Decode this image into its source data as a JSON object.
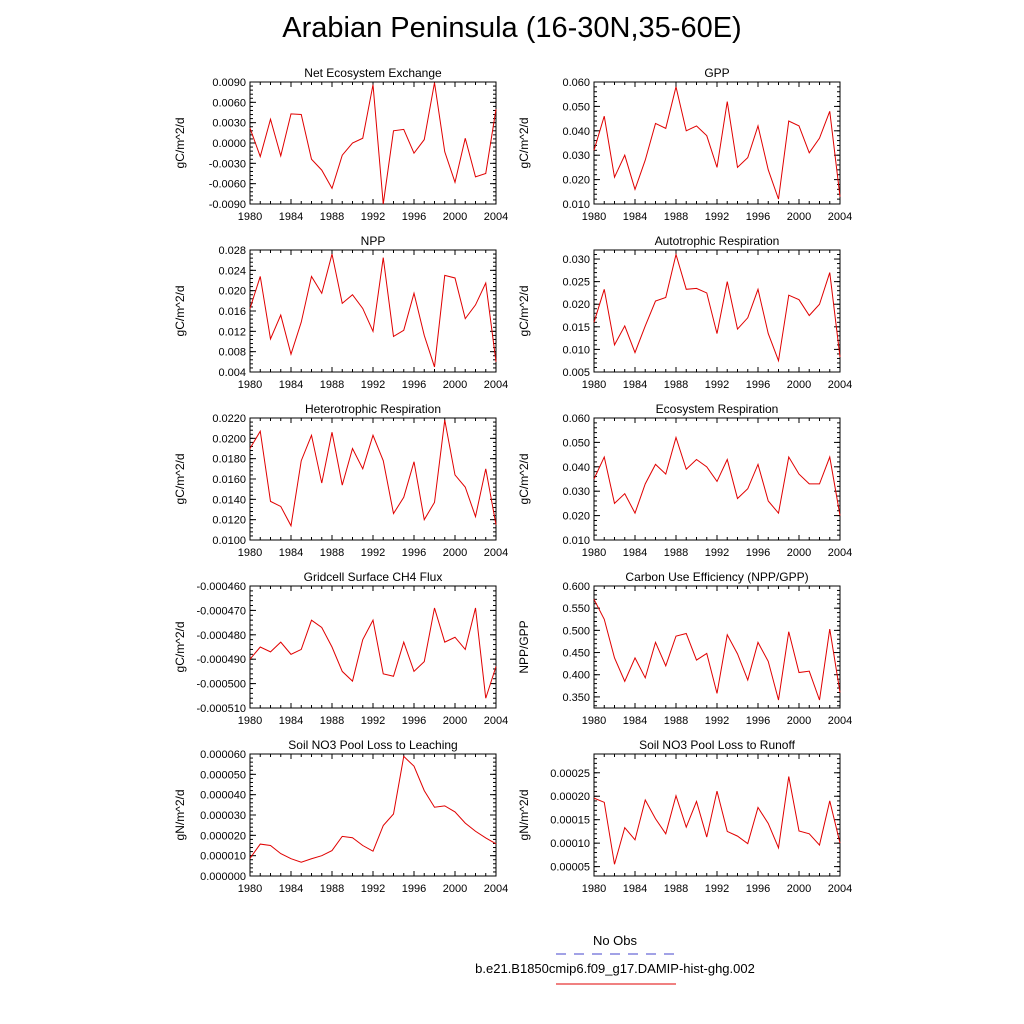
{
  "title": "Arabian Peninsula (16-30N,35-60E)",
  "legend": {
    "obs_label": "No Obs",
    "obs_color": "#4444cc",
    "model_label": "b.e21.B1850cmip6.f09_g17.DAMIP-hist-ghg.002",
    "model_color": "#e00000"
  },
  "chart_data": [
    {
      "type": "line",
      "title": "Net Ecosystem Exchange",
      "ylabel": "gC/m^2/d",
      "xlim": [
        1980,
        2004
      ],
      "ylim": [
        -0.009,
        0.009
      ],
      "xticks": [
        "1980",
        "1984",
        "1988",
        "1992",
        "1996",
        "2000",
        "2004"
      ],
      "yticks": [
        "-0.0090",
        "-0.0060",
        "-0.0030",
        "0.0000",
        "0.0030",
        "0.0060",
        "0.0090"
      ],
      "x": [
        1980,
        1981,
        1982,
        1983,
        1984,
        1985,
        1986,
        1987,
        1988,
        1989,
        1990,
        1991,
        1992,
        1993,
        1994,
        1995,
        1996,
        1997,
        1998,
        1999,
        2000,
        2001,
        2002,
        2003,
        2004
      ],
      "series": [
        {
          "values": [
            0.0022,
            -0.002,
            0.0035,
            -0.0019,
            0.0043,
            0.0042,
            -0.0024,
            -0.004,
            -0.0067,
            -0.0018,
            0.0,
            0.0007,
            0.0086,
            -0.009,
            0.0018,
            0.002,
            -0.0015,
            0.0005,
            0.0089,
            -0.0013,
            -0.0058,
            0.0007,
            -0.005,
            -0.0045,
            0.005
          ]
        }
      ]
    },
    {
      "type": "line",
      "title": "GPP",
      "ylabel": "gC/m^2/d",
      "xlim": [
        1980,
        2004
      ],
      "ylim": [
        0.01,
        0.06
      ],
      "xticks": [
        "1980",
        "1984",
        "1988",
        "1992",
        "1996",
        "2000",
        "2004"
      ],
      "yticks": [
        "0.010",
        "0.020",
        "0.030",
        "0.040",
        "0.050",
        "0.060"
      ],
      "x": [
        1980,
        1981,
        1982,
        1983,
        1984,
        1985,
        1986,
        1987,
        1988,
        1989,
        1990,
        1991,
        1992,
        1993,
        1994,
        1995,
        1996,
        1997,
        1998,
        1999,
        2000,
        2001,
        2002,
        2003,
        2004
      ],
      "series": [
        {
          "values": [
            0.032,
            0.046,
            0.021,
            0.03,
            0.016,
            0.028,
            0.043,
            0.041,
            0.058,
            0.04,
            0.042,
            0.038,
            0.025,
            0.052,
            0.025,
            0.029,
            0.042,
            0.024,
            0.012,
            0.044,
            0.042,
            0.031,
            0.037,
            0.048,
            0.013
          ]
        }
      ]
    },
    {
      "type": "line",
      "title": "NPP",
      "ylabel": "gC/m^2/d",
      "xlim": [
        1980,
        2004
      ],
      "ylim": [
        0.004,
        0.028
      ],
      "xticks": [
        "1980",
        "1984",
        "1988",
        "1992",
        "1996",
        "2000",
        "2004"
      ],
      "yticks": [
        "0.004",
        "0.008",
        "0.012",
        "0.016",
        "0.020",
        "0.024",
        "0.028"
      ],
      "x": [
        1980,
        1981,
        1982,
        1983,
        1984,
        1985,
        1986,
        1987,
        1988,
        1989,
        1990,
        1991,
        1992,
        1993,
        1994,
        1995,
        1996,
        1997,
        1998,
        1999,
        2000,
        2001,
        2002,
        2003,
        2004
      ],
      "series": [
        {
          "values": [
            0.0165,
            0.0228,
            0.0105,
            0.0152,
            0.0075,
            0.0138,
            0.0228,
            0.0195,
            0.0272,
            0.0175,
            0.0192,
            0.0165,
            0.012,
            0.0265,
            0.011,
            0.0122,
            0.0195,
            0.0112,
            0.005,
            0.023,
            0.0225,
            0.0145,
            0.0172,
            0.0215,
            0.006
          ]
        }
      ]
    },
    {
      "type": "line",
      "title": "Autotrophic Respiration",
      "ylabel": "gC/m^2/d",
      "xlim": [
        1980,
        2004
      ],
      "ylim": [
        0.005,
        0.032
      ],
      "xticks": [
        "1980",
        "1984",
        "1988",
        "1992",
        "1996",
        "2000",
        "2004"
      ],
      "yticks": [
        "0.005",
        "0.010",
        "0.015",
        "0.020",
        "0.025",
        "0.030"
      ],
      "x": [
        1980,
        1981,
        1982,
        1983,
        1984,
        1985,
        1986,
        1987,
        1988,
        1989,
        1990,
        1991,
        1992,
        1993,
        1994,
        1995,
        1996,
        1997,
        1998,
        1999,
        2000,
        2001,
        2002,
        2003,
        2004
      ],
      "series": [
        {
          "values": [
            0.016,
            0.0233,
            0.011,
            0.0152,
            0.0093,
            0.0152,
            0.0207,
            0.0215,
            0.031,
            0.0233,
            0.0235,
            0.0225,
            0.0135,
            0.025,
            0.0145,
            0.017,
            0.0233,
            0.0135,
            0.0075,
            0.022,
            0.021,
            0.0175,
            0.02,
            0.027,
            0.0083
          ]
        }
      ]
    },
    {
      "type": "line",
      "title": "Heterotrophic Respiration",
      "ylabel": "gC/m^2/d",
      "xlim": [
        1980,
        2004
      ],
      "ylim": [
        0.01,
        0.022
      ],
      "xticks": [
        "1980",
        "1984",
        "1988",
        "1992",
        "1996",
        "2000",
        "2004"
      ],
      "yticks": [
        "0.0100",
        "0.0120",
        "0.0140",
        "0.0160",
        "0.0180",
        "0.0200",
        "0.0220"
      ],
      "x": [
        1980,
        1981,
        1982,
        1983,
        1984,
        1985,
        1986,
        1987,
        1988,
        1989,
        1990,
        1991,
        1992,
        1993,
        1994,
        1995,
        1996,
        1997,
        1998,
        1999,
        2000,
        2001,
        2002,
        2003,
        2004
      ],
      "series": [
        {
          "values": [
            0.019,
            0.0207,
            0.0138,
            0.0133,
            0.0114,
            0.0178,
            0.0203,
            0.0156,
            0.0206,
            0.0154,
            0.019,
            0.017,
            0.0203,
            0.0178,
            0.0126,
            0.0142,
            0.0177,
            0.012,
            0.0137,
            0.0218,
            0.0164,
            0.0152,
            0.0123,
            0.017,
            0.0115
          ]
        }
      ]
    },
    {
      "type": "line",
      "title": "Ecosystem Respiration",
      "ylabel": "gC/m^2/d",
      "xlim": [
        1980,
        2004
      ],
      "ylim": [
        0.01,
        0.06
      ],
      "xticks": [
        "1980",
        "1984",
        "1988",
        "1992",
        "1996",
        "2000",
        "2004"
      ],
      "yticks": [
        "0.010",
        "0.020",
        "0.030",
        "0.040",
        "0.050",
        "0.060"
      ],
      "x": [
        1980,
        1981,
        1982,
        1983,
        1984,
        1985,
        1986,
        1987,
        1988,
        1989,
        1990,
        1991,
        1992,
        1993,
        1994,
        1995,
        1996,
        1997,
        1998,
        1999,
        2000,
        2001,
        2002,
        2003,
        2004
      ],
      "series": [
        {
          "values": [
            0.035,
            0.044,
            0.025,
            0.029,
            0.021,
            0.033,
            0.041,
            0.037,
            0.052,
            0.039,
            0.043,
            0.04,
            0.034,
            0.043,
            0.027,
            0.031,
            0.041,
            0.026,
            0.021,
            0.044,
            0.037,
            0.033,
            0.033,
            0.044,
            0.02
          ]
        }
      ]
    },
    {
      "type": "line",
      "title": "Gridcell Surface CH4 Flux",
      "ylabel": "gC/m^2/d",
      "xlim": [
        1980,
        2004
      ],
      "ylim": [
        -0.00051,
        -0.00046
      ],
      "xticks": [
        "1980",
        "1984",
        "1988",
        "1992",
        "1996",
        "2000",
        "2004"
      ],
      "yticks": [
        "-0.000510",
        "-0.000500",
        "-0.000490",
        "-0.000480",
        "-0.000470",
        "-0.000460"
      ],
      "x": [
        1980,
        1981,
        1982,
        1983,
        1984,
        1985,
        1986,
        1987,
        1988,
        1989,
        1990,
        1991,
        1992,
        1993,
        1994,
        1995,
        1996,
        1997,
        1998,
        1999,
        2000,
        2001,
        2002,
        2003,
        2004
      ],
      "series": [
        {
          "values": [
            -0.00049,
            -0.000485,
            -0.000487,
            -0.000483,
            -0.000488,
            -0.000486,
            -0.000474,
            -0.000477,
            -0.000485,
            -0.000495,
            -0.000499,
            -0.000482,
            -0.000474,
            -0.000496,
            -0.000497,
            -0.000483,
            -0.000495,
            -0.000491,
            -0.000469,
            -0.000483,
            -0.000481,
            -0.000486,
            -0.000469,
            -0.000506,
            -0.000493
          ]
        }
      ]
    },
    {
      "type": "line",
      "title": "Carbon Use Efficiency (NPP/GPP)",
      "ylabel": "NPP/GPP",
      "xlim": [
        1980,
        2004
      ],
      "ylim": [
        0.325,
        0.6
      ],
      "xticks": [
        "1980",
        "1984",
        "1988",
        "1992",
        "1996",
        "2000",
        "2004"
      ],
      "yticks": [
        "0.350",
        "0.400",
        "0.450",
        "0.500",
        "0.550",
        "0.600"
      ],
      "x": [
        1980,
        1981,
        1982,
        1983,
        1984,
        1985,
        1986,
        1987,
        1988,
        1989,
        1990,
        1991,
        1992,
        1993,
        1994,
        1995,
        1996,
        1997,
        1998,
        1999,
        2000,
        2001,
        2002,
        2003,
        2004
      ],
      "series": [
        {
          "values": [
            0.57,
            0.525,
            0.438,
            0.385,
            0.438,
            0.393,
            0.473,
            0.42,
            0.487,
            0.493,
            0.433,
            0.448,
            0.358,
            0.49,
            0.447,
            0.388,
            0.473,
            0.43,
            0.343,
            0.497,
            0.405,
            0.408,
            0.343,
            0.503,
            0.36
          ]
        }
      ]
    },
    {
      "type": "line",
      "title": "Soil NO3 Pool Loss to Leaching",
      "ylabel": "gN/m^2/d",
      "xlim": [
        1980,
        2004
      ],
      "ylim": [
        0.0,
        6e-05
      ],
      "xticks": [
        "1980",
        "1984",
        "1988",
        "1992",
        "1996",
        "2000",
        "2004"
      ],
      "yticks": [
        "0.000000",
        "0.000010",
        "0.000020",
        "0.000030",
        "0.000040",
        "0.000050",
        "0.000060"
      ],
      "x": [
        1980,
        1981,
        1982,
        1983,
        1984,
        1985,
        1986,
        1987,
        1988,
        1989,
        1990,
        1991,
        1992,
        1993,
        1994,
        1995,
        1996,
        1997,
        1998,
        1999,
        2000,
        2001,
        2002,
        2003,
        2004
      ],
      "series": [
        {
          "values": [
            8.7e-06,
            1.57e-05,
            1.5e-05,
            1.1e-05,
            8.5e-06,
            6.8e-06,
            8.5e-06,
            1e-05,
            1.25e-05,
            1.95e-05,
            1.88e-05,
            1.5e-05,
            1.22e-05,
            2.48e-05,
            3.05e-05,
            5.88e-05,
            5.4e-05,
            4.2e-05,
            3.38e-05,
            3.45e-05,
            3.15e-05,
            2.6e-05,
            2.2e-05,
            1.87e-05,
            1.58e-05
          ]
        }
      ]
    },
    {
      "type": "line",
      "title": "Soil NO3 Pool Loss to Runoff",
      "ylabel": "gN/m^2/d",
      "xlim": [
        1980,
        2004
      ],
      "ylim": [
        3e-05,
        0.00029
      ],
      "xticks": [
        "1980",
        "1984",
        "1988",
        "1992",
        "1996",
        "2000",
        "2004"
      ],
      "yticks": [
        "0.00005",
        "0.00010",
        "0.00015",
        "0.00020",
        "0.00025"
      ],
      "x": [
        1980,
        1981,
        1982,
        1983,
        1984,
        1985,
        1986,
        1987,
        1988,
        1989,
        1990,
        1991,
        1992,
        1993,
        1994,
        1995,
        1996,
        1997,
        1998,
        1999,
        2000,
        2001,
        2002,
        2003,
        2004
      ],
      "series": [
        {
          "values": [
            0.000196,
            0.000187,
            5.5e-05,
            0.000133,
            0.000107,
            0.000192,
            0.000152,
            0.00012,
            0.000201,
            0.000134,
            0.000189,
            0.000113,
            0.000211,
            0.000125,
            0.000115,
            9.9e-05,
            0.000176,
            0.000142,
            9e-05,
            0.000242,
            0.000126,
            0.00012,
            9.6e-05,
            0.00019,
            0.0001
          ]
        }
      ]
    }
  ]
}
